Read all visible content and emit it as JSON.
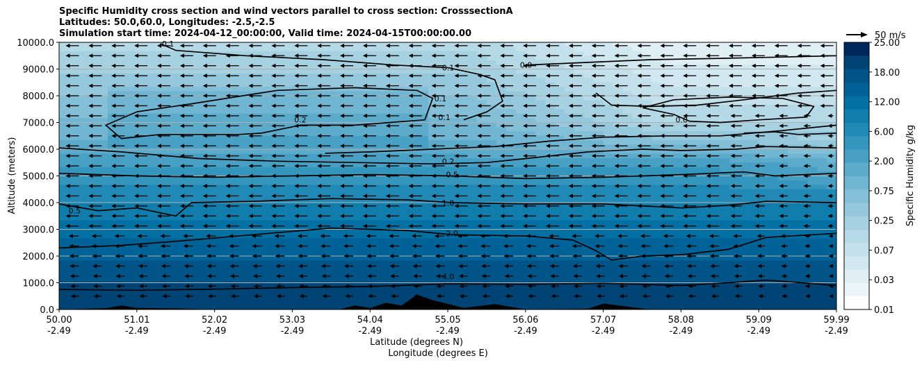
{
  "chart_data": {
    "type": "heatmap",
    "title": [
      "Specific Humidity cross section and wind vectors parallel to cross section: CrosssectionA",
      "Latitudes: 50.0,60.0, Longitudes: -2.5,-2.5",
      "Simulation start time: 2024-04-12_00:00:00, Valid time: 2024-04-15T00:00:00.00"
    ],
    "xlabel_lat": "Latitude (degrees N)",
    "xlabel_lon": "Longitude (degrees E)",
    "ylabel": "Altitude (meters)",
    "xlim": [
      50.0,
      59.99
    ],
    "ylim": [
      0,
      10000
    ],
    "x_ticks_lat": [
      "50.00",
      "51.01",
      "52.02",
      "53.03",
      "54.04",
      "55.05",
      "56.06",
      "57.07",
      "58.08",
      "59.09",
      "59.99"
    ],
    "x_ticks_lon": [
      "-2.49",
      "-2.49",
      "-2.49",
      "-2.49",
      "-2.49",
      "-2.49",
      "-2.49",
      "-2.49",
      "-2.49",
      "-2.49",
      "-2.49"
    ],
    "y_ticks": [
      "0.0",
      "1000.0",
      "2000.0",
      "3000.0",
      "4000.0",
      "5000.0",
      "6000.0",
      "7000.0",
      "8000.0",
      "9000.0",
      "10000.0"
    ],
    "y_gridlines": [
      1000,
      2000,
      3000,
      4000,
      5000,
      6000,
      7000,
      8000,
      9000
    ],
    "grid": "horizontal",
    "colorbar": {
      "label": "Specific Humidity g/kg",
      "tick_labels": [
        "0.01",
        "0.03",
        "0.07",
        "0.25",
        "0.75",
        "2.00",
        "6.00",
        "12.00",
        "18.00",
        "25.00"
      ],
      "levels": 20,
      "colors": [
        "#ffffff",
        "#edf5f8",
        "#e0eff4",
        "#d2e8f0",
        "#c4e1eb",
        "#b5d9e6",
        "#a6d1e1",
        "#95c8dc",
        "#83bfd7",
        "#70b5d1",
        "#5cabcb",
        "#48a0c4",
        "#3495bd",
        "#2189b5",
        "#107dac",
        "#0370a3",
        "#006296",
        "#005487",
        "#004476",
        "#00285e"
      ]
    },
    "wind_reference": {
      "label": "50 m/s"
    },
    "contour_labels": [
      {
        "text": "0.1",
        "x": 51.4,
        "y": 9950
      },
      {
        "text": "0.1",
        "x": 55.0,
        "y": 9050
      },
      {
        "text": "0.0",
        "x": 56.0,
        "y": 9150
      },
      {
        "text": "0.1",
        "x": 54.9,
        "y": 7900
      },
      {
        "text": "0.1",
        "x": 54.95,
        "y": 7200
      },
      {
        "text": "0.2",
        "x": 53.1,
        "y": 7100
      },
      {
        "text": "0.0",
        "x": 58.0,
        "y": 7100
      },
      {
        "text": "0.2",
        "x": 55.0,
        "y": 5550
      },
      {
        "text": "0.5",
        "x": 55.05,
        "y": 5050
      },
      {
        "text": "1.0",
        "x": 55.0,
        "y": 3990
      },
      {
        "text": "2.0",
        "x": 55.05,
        "y": 2850
      },
      {
        "text": "4.0",
        "x": 55.0,
        "y": 1240
      },
      {
        "text": "0.5",
        "x": 50.2,
        "y": 3700
      }
    ],
    "contour_lines": [
      {
        "level": "4.0",
        "points": [
          [
            50.0,
            750
          ],
          [
            51.0,
            720
          ],
          [
            52.0,
            760
          ],
          [
            53.0,
            820
          ],
          [
            54.0,
            860
          ],
          [
            55.0,
            960
          ],
          [
            56.0,
            940
          ],
          [
            57.0,
            980
          ],
          [
            58.0,
            900
          ],
          [
            58.6,
            1000
          ],
          [
            59.09,
            1100
          ],
          [
            59.99,
            900
          ]
        ]
      },
      {
        "level": "2.0",
        "points": [
          [
            50.0,
            2300
          ],
          [
            50.8,
            2400
          ],
          [
            51.5,
            2550
          ],
          [
            52.5,
            2800
          ],
          [
            53.5,
            3050
          ],
          [
            54.5,
            2950
          ],
          [
            55.05,
            2800
          ],
          [
            56.0,
            2750
          ],
          [
            56.6,
            2600
          ],
          [
            56.9,
            2200
          ],
          [
            57.1,
            1850
          ],
          [
            57.5,
            2000
          ],
          [
            58.0,
            2050
          ],
          [
            58.6,
            2250
          ],
          [
            59.09,
            2700
          ],
          [
            59.99,
            2850
          ]
        ]
      },
      {
        "level": "1.0",
        "points": [
          [
            50.0,
            3950
          ],
          [
            50.5,
            3700
          ],
          [
            51.0,
            3800
          ],
          [
            51.5,
            3500
          ],
          [
            51.7,
            4000
          ],
          [
            52.5,
            4050
          ],
          [
            53.5,
            4150
          ],
          [
            54.5,
            4100
          ],
          [
            55.05,
            4000
          ],
          [
            56.0,
            3950
          ],
          [
            57.0,
            3950
          ],
          [
            58.0,
            3800
          ],
          [
            58.6,
            3900
          ],
          [
            59.09,
            4050
          ],
          [
            59.99,
            4000
          ]
        ]
      },
      {
        "level": "0.5",
        "points": [
          [
            50.0,
            5100
          ],
          [
            51.0,
            5000
          ],
          [
            52.0,
            4950
          ],
          [
            53.0,
            5000
          ],
          [
            54.0,
            5050
          ],
          [
            55.05,
            5000
          ],
          [
            56.0,
            4900
          ],
          [
            57.0,
            4950
          ],
          [
            58.0,
            5050
          ],
          [
            58.8,
            5150
          ],
          [
            59.2,
            5000
          ],
          [
            59.99,
            5100
          ]
        ]
      },
      {
        "level": "0.2",
        "points": [
          [
            50.0,
            6050
          ],
          [
            50.8,
            5900
          ],
          [
            51.8,
            5650
          ],
          [
            52.8,
            5550
          ],
          [
            53.8,
            5500
          ],
          [
            54.8,
            5450
          ],
          [
            55.5,
            5500
          ],
          [
            56.0,
            5650
          ],
          [
            56.8,
            5900
          ],
          [
            57.5,
            6000
          ],
          [
            58.0,
            5950
          ],
          [
            58.7,
            6000
          ],
          [
            59.09,
            6100
          ],
          [
            59.99,
            6050
          ]
        ]
      },
      {
        "level": "0.2",
        "points": [
          [
            53.42,
            5850
          ],
          [
            54.0,
            5900
          ],
          [
            54.8,
            6000
          ],
          [
            55.6,
            6100
          ],
          [
            56.3,
            6300
          ],
          [
            57.0,
            6450
          ],
          [
            57.8,
            6500
          ],
          [
            58.5,
            6500
          ],
          [
            59.3,
            6700
          ],
          [
            59.99,
            6900
          ]
        ]
      },
      {
        "level": "0.2",
        "points": [
          [
            52.3,
            6550
          ],
          [
            51.3,
            6550
          ],
          [
            50.8,
            6400
          ],
          [
            50.6,
            6900
          ],
          [
            51.0,
            7400
          ],
          [
            51.7,
            7700
          ],
          [
            52.8,
            8200
          ],
          [
            53.8,
            8300
          ],
          [
            54.6,
            8200
          ],
          [
            54.8,
            7900
          ],
          [
            54.7,
            7100
          ],
          [
            53.8,
            6900
          ],
          [
            53.1,
            6900
          ],
          [
            52.6,
            6600
          ],
          [
            52.3,
            6550
          ]
        ]
      },
      {
        "level": "0.1",
        "points": [
          [
            55.0,
            9050
          ],
          [
            54.3,
            9150
          ],
          [
            53.4,
            9350
          ],
          [
            52.4,
            9500
          ],
          [
            51.5,
            9700
          ],
          [
            51.3,
            9950
          ]
        ]
      },
      {
        "level": "0.1",
        "points": [
          [
            55.0,
            9050
          ],
          [
            55.4,
            8800
          ],
          [
            55.6,
            8600
          ],
          [
            55.7,
            7800
          ],
          [
            55.5,
            7400
          ],
          [
            55.2,
            7100
          ]
        ]
      },
      {
        "level": "0.0",
        "points": [
          [
            56.0,
            9150
          ],
          [
            56.8,
            9250
          ],
          [
            57.6,
            9350
          ],
          [
            58.5,
            9400
          ],
          [
            59.3,
            9450
          ],
          [
            59.99,
            9500
          ]
        ]
      },
      {
        "level": "0.0",
        "points": [
          [
            57.5,
            7550
          ],
          [
            57.9,
            7850
          ],
          [
            58.6,
            7950
          ],
          [
            59.3,
            7900
          ],
          [
            59.7,
            7600
          ],
          [
            59.6,
            7200
          ],
          [
            59.0,
            7100
          ],
          [
            58.5,
            7000
          ],
          [
            58.1,
            7050
          ],
          [
            57.9,
            7300
          ],
          [
            57.5,
            7550
          ]
        ]
      },
      {
        "level": "0.0",
        "points": [
          [
            56.9,
            8100
          ],
          [
            57.1,
            7650
          ],
          [
            57.6,
            7600
          ],
          [
            58.2,
            7650
          ],
          [
            58.8,
            7850
          ],
          [
            59.5,
            8100
          ],
          [
            59.99,
            8200
          ]
        ]
      },
      {
        "level": "0.0",
        "points": [
          [
            58.8,
            6600
          ],
          [
            59.2,
            6650
          ],
          [
            59.5,
            6550
          ],
          [
            59.99,
            6600
          ]
        ]
      }
    ],
    "terrain": [
      [
        50.0,
        0
      ],
      [
        50.6,
        50
      ],
      [
        50.8,
        150
      ],
      [
        51.0,
        60
      ],
      [
        51.5,
        40
      ],
      [
        52.0,
        0
      ],
      [
        53.6,
        0
      ],
      [
        53.8,
        150
      ],
      [
        54.0,
        60
      ],
      [
        54.2,
        250
      ],
      [
        54.4,
        150
      ],
      [
        54.6,
        550
      ],
      [
        54.8,
        350
      ],
      [
        55.2,
        60
      ],
      [
        55.6,
        200
      ],
      [
        56.0,
        0
      ],
      [
        56.8,
        30
      ],
      [
        57.0,
        220
      ],
      [
        57.4,
        70
      ],
      [
        57.6,
        0
      ],
      [
        59.99,
        0
      ]
    ]
  }
}
